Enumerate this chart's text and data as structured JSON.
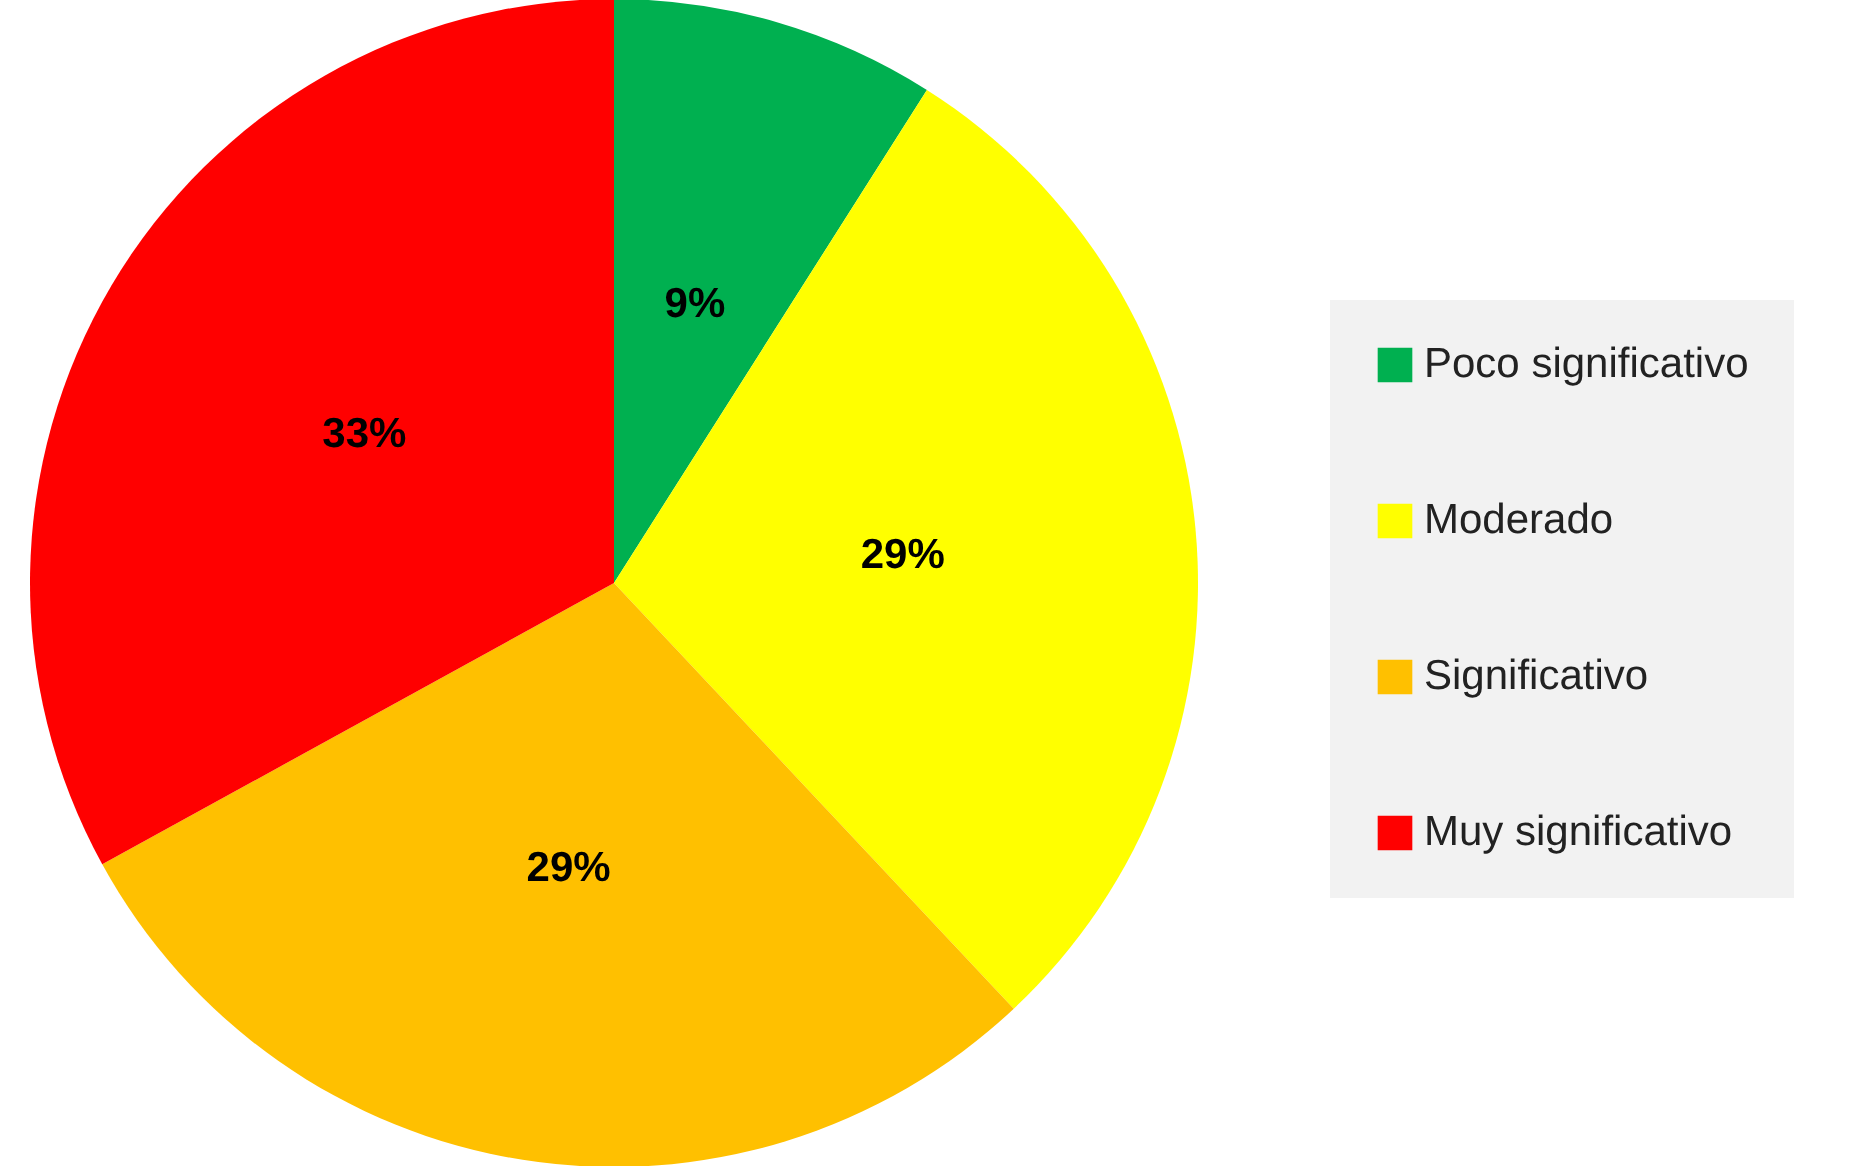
{
  "chart_data": {
    "type": "pie",
    "categories": [
      "Poco significativo",
      "Moderado",
      "Significativo",
      "Muy significativo"
    ],
    "values": [
      9,
      29,
      29,
      33
    ],
    "colors": [
      "#00b050",
      "#ffff00",
      "#ffc000",
      "#ff0000"
    ],
    "value_labels": [
      "9%",
      "29%",
      "29%",
      "33%"
    ],
    "legend": "right"
  }
}
